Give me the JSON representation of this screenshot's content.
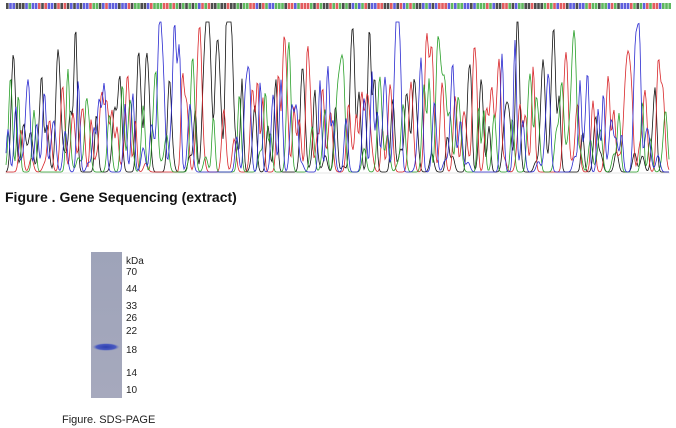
{
  "sequencing_figure": {
    "caption": "Figure . Gene Sequencing (extract)"
  },
  "sds_page_figure": {
    "unit": "kDa",
    "markers": [
      70,
      44,
      33,
      26,
      22,
      18,
      14,
      10
    ],
    "caption": "Figure. SDS-PAGE"
  }
}
